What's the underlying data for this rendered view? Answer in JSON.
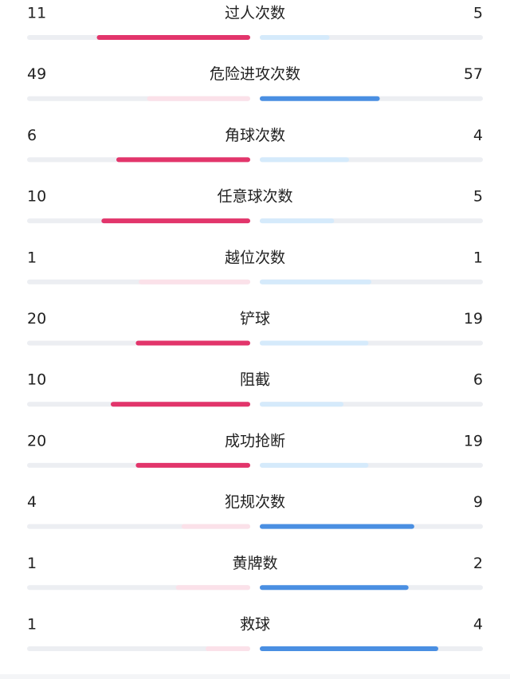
{
  "stats": {
    "colors": {
      "home_strong": "#e2356b",
      "home_light": "#fbe1e9",
      "away_strong": "#4a8fe2",
      "away_light": "#d5eafb",
      "track": "#eceef2"
    },
    "rows": [
      {
        "label": "过人次数",
        "home": 11,
        "away": 5
      },
      {
        "label": "危险进攻次数",
        "home": 49,
        "away": 57
      },
      {
        "label": "角球次数",
        "home": 6,
        "away": 4
      },
      {
        "label": "任意球次数",
        "home": 10,
        "away": 5
      },
      {
        "label": "越位次数",
        "home": 1,
        "away": 1
      },
      {
        "label": "铲球",
        "home": 20,
        "away": 19
      },
      {
        "label": "阻截",
        "home": 10,
        "away": 6
      },
      {
        "label": "成功抢断",
        "home": 20,
        "away": 19
      },
      {
        "label": "犯规次数",
        "home": 4,
        "away": 9
      },
      {
        "label": "黄牌数",
        "home": 1,
        "away": 2
      },
      {
        "label": "救球",
        "home": 1,
        "away": 4
      }
    ]
  }
}
